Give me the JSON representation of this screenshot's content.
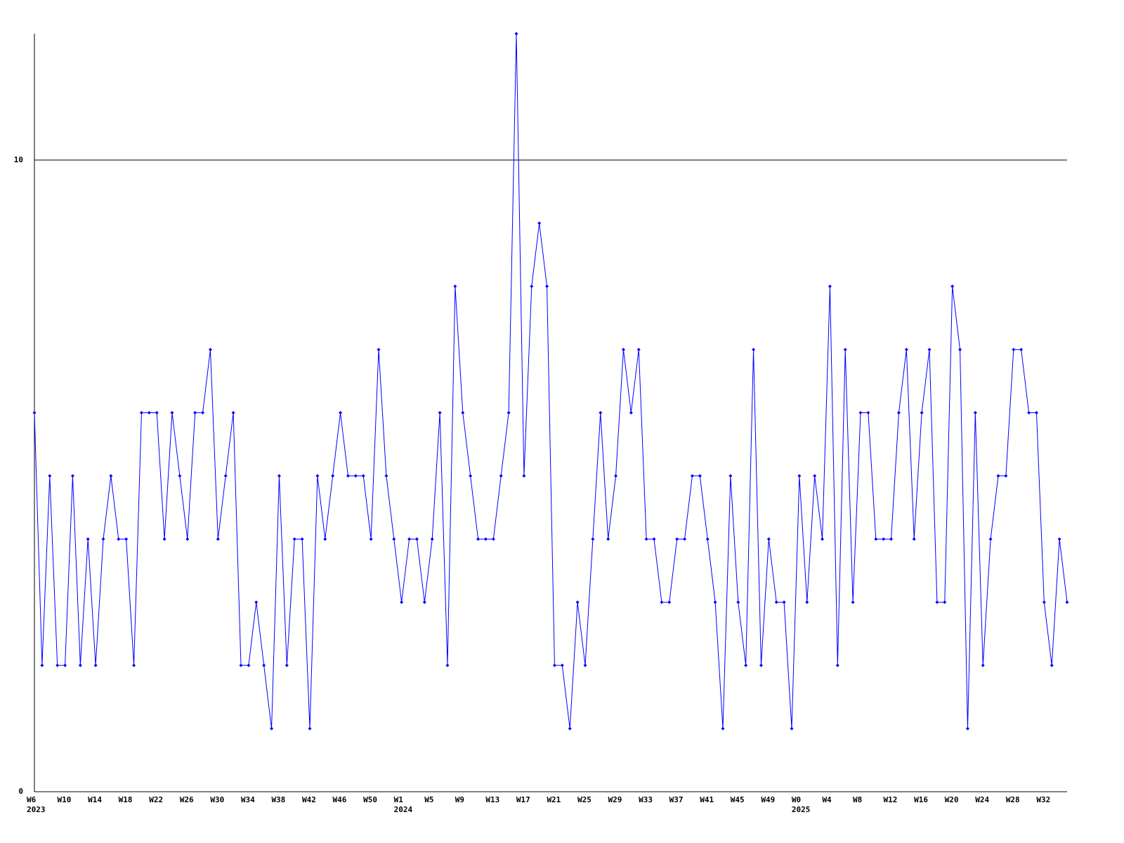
{
  "chart_data": {
    "type": "line",
    "categories": [
      "W6",
      null,
      null,
      null,
      "W10",
      null,
      null,
      null,
      "W14",
      null,
      null,
      null,
      "W18",
      null,
      null,
      null,
      "W22",
      null,
      null,
      null,
      "W26",
      null,
      null,
      null,
      "W30",
      null,
      null,
      null,
      "W34",
      null,
      null,
      null,
      "W38",
      null,
      null,
      null,
      "W42",
      null,
      null,
      null,
      "W46",
      null,
      null,
      null,
      "W50",
      null,
      null,
      null,
      "W1",
      null,
      null,
      null,
      "W5",
      null,
      null,
      null,
      "W9",
      null,
      null,
      null,
      "W13",
      null,
      null,
      null,
      "W17",
      null,
      null,
      null,
      "W21",
      null,
      null,
      null,
      "W25",
      null,
      null,
      null,
      "W29",
      null,
      null,
      null,
      "W33",
      null,
      null,
      null,
      "W37",
      null,
      null,
      null,
      "W41",
      null,
      null,
      null,
      "W45",
      null,
      null,
      null,
      "W49",
      null,
      null,
      null,
      "W0",
      null,
      null,
      null,
      "W4",
      null,
      null,
      null,
      "W8",
      null,
      null,
      null,
      "W12",
      null,
      null,
      null,
      "W16",
      null,
      null,
      null,
      "W20",
      null,
      null,
      null,
      "W24",
      null,
      null,
      null,
      "W28",
      null,
      null,
      null,
      "W32",
      null,
      null,
      null
    ],
    "category_years": [
      "2023",
      null,
      null,
      null,
      null,
      null,
      null,
      null,
      null,
      null,
      null,
      null,
      null,
      null,
      null,
      null,
      null,
      null,
      null,
      null,
      null,
      null,
      null,
      null,
      null,
      null,
      null,
      null,
      null,
      null,
      null,
      null,
      null,
      null,
      null,
      null,
      null,
      null,
      null,
      null,
      null,
      null,
      null,
      null,
      null,
      null,
      null,
      null,
      "2024",
      null,
      null,
      null,
      null,
      null,
      null,
      null,
      null,
      null,
      null,
      null,
      null,
      null,
      null,
      null,
      null,
      null,
      null,
      null,
      null,
      null,
      null,
      null,
      null,
      null,
      null,
      null,
      null,
      null,
      null,
      null,
      null,
      null,
      null,
      null,
      null,
      null,
      null,
      null,
      null,
      null,
      null,
      null,
      null,
      null,
      null,
      null,
      null,
      null,
      null,
      null,
      "2025",
      null,
      null,
      null,
      null,
      null,
      null,
      null,
      null,
      null,
      null,
      null,
      null,
      null,
      null,
      null,
      null,
      null,
      null,
      null,
      null,
      null,
      null,
      null,
      null,
      null,
      null,
      null,
      null,
      null,
      null,
      null,
      null,
      null,
      null,
      null
    ],
    "series": [
      {
        "color": "#0000ff",
        "values": [
          6,
          2,
          5,
          2,
          2,
          5,
          2,
          4,
          2,
          4,
          5,
          4,
          4,
          2,
          6,
          6,
          6,
          4,
          6,
          5,
          4,
          6,
          6,
          7,
          4,
          5,
          6,
          2,
          2,
          3,
          2,
          1,
          5,
          2,
          4,
          4,
          1,
          5,
          4,
          5,
          6,
          5,
          5,
          5,
          4,
          7,
          5,
          4,
          3,
          4,
          4,
          3,
          4,
          6,
          2,
          8,
          6,
          5,
          4,
          4,
          4,
          5,
          6,
          12,
          5,
          8,
          9,
          8,
          2,
          2,
          1,
          3,
          2,
          4,
          6,
          4,
          5,
          7,
          6,
          7,
          4,
          4,
          3,
          3,
          4,
          4,
          5,
          5,
          4,
          3,
          1,
          5,
          3,
          2,
          7,
          2,
          4,
          3,
          3,
          1,
          5,
          3,
          5,
          4,
          8,
          2,
          7,
          3,
          6,
          6,
          4,
          4,
          4,
          6,
          7,
          4,
          6,
          7,
          3,
          3,
          8,
          7,
          1,
          6,
          2,
          4,
          5,
          5,
          7,
          7,
          6,
          6,
          3,
          2,
          4,
          3
        ]
      }
    ],
    "ylim": [
      0,
      12
    ],
    "yticks": [
      0,
      10
    ],
    "grid": true
  }
}
